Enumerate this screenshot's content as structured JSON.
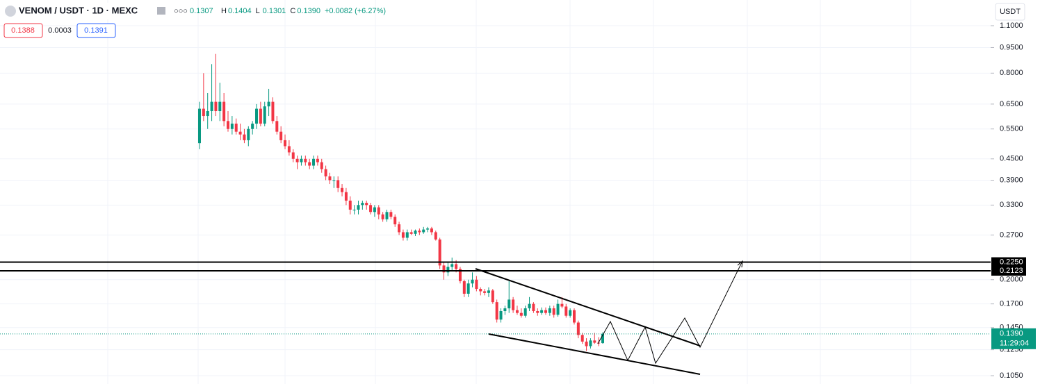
{
  "header": {
    "symbol": "VENOM / USDT · 1D · MEXC",
    "dots": "○○○",
    "open": "0.1307",
    "ohlc": [
      {
        "key": "H",
        "value": "0.1404"
      },
      {
        "key": "L",
        "value": "0.1301"
      },
      {
        "key": "C",
        "value": "0.1390"
      }
    ],
    "change": "+0.0082 (+6.27%)",
    "sell": "0.1388",
    "spread": "0.0003",
    "buy": "0.1391",
    "currency": "USDT"
  },
  "chart_data": {
    "type": "candlestick",
    "log_scale": true,
    "grid": true,
    "up_color": "#089981",
    "down_color": "#f23645",
    "ylim": [
      0.0993,
      1.307
    ],
    "yticks": [
      {
        "value": 1.1,
        "label": "1.1000"
      },
      {
        "value": 0.95,
        "label": "0.9500"
      },
      {
        "value": 0.8,
        "label": "0.8000"
      },
      {
        "value": 0.65,
        "label": "0.6500"
      },
      {
        "value": 0.55,
        "label": "0.5500"
      },
      {
        "value": 0.45,
        "label": "0.4500"
      },
      {
        "value": 0.39,
        "label": "0.3900"
      },
      {
        "value": 0.33,
        "label": "0.3300"
      },
      {
        "value": 0.27,
        "label": "0.2700"
      },
      {
        "value": 0.2,
        "label": "0.2000"
      },
      {
        "value": 0.17,
        "label": "0.1700"
      },
      {
        "value": 0.145,
        "label": "0.1450"
      },
      {
        "value": 0.125,
        "label": "0.1250"
      },
      {
        "value": 0.105,
        "label": "0.1050"
      }
    ],
    "levels": [
      {
        "value": 0.225,
        "label": "0.2250"
      },
      {
        "value": 0.2123,
        "label": "0.2123"
      }
    ],
    "last_price": {
      "value": 0.139,
      "label": "0.1390",
      "countdown": "11:29:04"
    },
    "candles": [
      [
        0.5,
        0.66,
        0.48,
        0.63
      ],
      [
        0.63,
        0.8,
        0.58,
        0.6
      ],
      [
        0.6,
        0.7,
        0.55,
        0.62
      ],
      [
        0.62,
        0.85,
        0.58,
        0.66
      ],
      [
        0.66,
        0.91,
        0.6,
        0.62
      ],
      [
        0.62,
        0.75,
        0.58,
        0.66
      ],
      [
        0.66,
        0.7,
        0.56,
        0.58
      ],
      [
        0.58,
        0.62,
        0.54,
        0.55
      ],
      [
        0.55,
        0.6,
        0.53,
        0.57
      ],
      [
        0.57,
        0.59,
        0.53,
        0.54
      ],
      [
        0.54,
        0.57,
        0.51,
        0.53
      ],
      [
        0.53,
        0.55,
        0.5,
        0.51
      ],
      [
        0.51,
        0.56,
        0.49,
        0.55
      ],
      [
        0.55,
        0.58,
        0.53,
        0.57
      ],
      [
        0.57,
        0.65,
        0.55,
        0.63
      ],
      [
        0.63,
        0.66,
        0.56,
        0.57
      ],
      [
        0.57,
        0.66,
        0.56,
        0.64
      ],
      [
        0.64,
        0.72,
        0.6,
        0.66
      ],
      [
        0.66,
        0.68,
        0.57,
        0.58
      ],
      [
        0.58,
        0.6,
        0.53,
        0.54
      ],
      [
        0.54,
        0.56,
        0.5,
        0.51
      ],
      [
        0.51,
        0.53,
        0.48,
        0.49
      ],
      [
        0.49,
        0.51,
        0.46,
        0.47
      ],
      [
        0.47,
        0.48,
        0.44,
        0.45
      ],
      [
        0.45,
        0.46,
        0.42,
        0.44
      ],
      [
        0.44,
        0.46,
        0.43,
        0.45
      ],
      [
        0.45,
        0.46,
        0.43,
        0.44
      ],
      [
        0.44,
        0.45,
        0.42,
        0.43
      ],
      [
        0.43,
        0.46,
        0.42,
        0.45
      ],
      [
        0.45,
        0.46,
        0.43,
        0.44
      ],
      [
        0.44,
        0.45,
        0.41,
        0.42
      ],
      [
        0.42,
        0.43,
        0.39,
        0.4
      ],
      [
        0.4,
        0.41,
        0.38,
        0.39
      ],
      [
        0.39,
        0.4,
        0.37,
        0.39
      ],
      [
        0.39,
        0.4,
        0.36,
        0.37
      ],
      [
        0.37,
        0.38,
        0.35,
        0.36
      ],
      [
        0.36,
        0.37,
        0.33,
        0.34
      ],
      [
        0.34,
        0.35,
        0.31,
        0.32
      ],
      [
        0.32,
        0.33,
        0.31,
        0.32
      ],
      [
        0.32,
        0.34,
        0.31,
        0.33
      ],
      [
        0.33,
        0.34,
        0.32,
        0.335
      ],
      [
        0.335,
        0.34,
        0.32,
        0.33
      ],
      [
        0.33,
        0.335,
        0.31,
        0.315
      ],
      [
        0.315,
        0.33,
        0.305,
        0.325
      ],
      [
        0.325,
        0.33,
        0.3,
        0.31
      ],
      [
        0.31,
        0.315,
        0.295,
        0.3
      ],
      [
        0.3,
        0.32,
        0.295,
        0.315
      ],
      [
        0.315,
        0.32,
        0.3,
        0.305
      ],
      [
        0.305,
        0.31,
        0.285,
        0.29
      ],
      [
        0.29,
        0.295,
        0.27,
        0.275
      ],
      [
        0.275,
        0.28,
        0.26,
        0.265
      ],
      [
        0.265,
        0.28,
        0.26,
        0.275
      ],
      [
        0.275,
        0.28,
        0.27,
        0.272
      ],
      [
        0.272,
        0.28,
        0.268,
        0.278
      ],
      [
        0.278,
        0.282,
        0.27,
        0.275
      ],
      [
        0.275,
        0.285,
        0.272,
        0.28
      ],
      [
        0.28,
        0.285,
        0.275,
        0.282
      ],
      [
        0.282,
        0.285,
        0.27,
        0.275
      ],
      [
        0.275,
        0.278,
        0.26,
        0.262
      ],
      [
        0.262,
        0.265,
        0.215,
        0.22
      ],
      [
        0.22,
        0.225,
        0.2,
        0.21
      ],
      [
        0.21,
        0.225,
        0.205,
        0.218
      ],
      [
        0.218,
        0.232,
        0.212,
        0.222
      ],
      [
        0.222,
        0.228,
        0.21,
        0.215
      ],
      [
        0.215,
        0.218,
        0.195,
        0.198
      ],
      [
        0.198,
        0.2,
        0.178,
        0.182
      ],
      [
        0.182,
        0.2,
        0.178,
        0.195
      ],
      [
        0.195,
        0.21,
        0.19,
        0.2
      ],
      [
        0.2,
        0.205,
        0.185,
        0.188
      ],
      [
        0.188,
        0.19,
        0.18,
        0.185
      ],
      [
        0.185,
        0.188,
        0.18,
        0.183
      ],
      [
        0.183,
        0.19,
        0.178,
        0.186
      ],
      [
        0.186,
        0.188,
        0.17,
        0.172
      ],
      [
        0.172,
        0.175,
        0.15,
        0.153
      ],
      [
        0.153,
        0.165,
        0.15,
        0.162
      ],
      [
        0.162,
        0.168,
        0.158,
        0.165
      ],
      [
        0.165,
        0.198,
        0.16,
        0.175
      ],
      [
        0.175,
        0.178,
        0.16,
        0.163
      ],
      [
        0.163,
        0.168,
        0.158,
        0.16
      ],
      [
        0.16,
        0.165,
        0.155,
        0.157
      ],
      [
        0.157,
        0.168,
        0.155,
        0.165
      ],
      [
        0.165,
        0.178,
        0.162,
        0.17
      ],
      [
        0.17,
        0.172,
        0.16,
        0.162
      ],
      [
        0.162,
        0.165,
        0.157,
        0.16
      ],
      [
        0.16,
        0.166,
        0.158,
        0.163
      ],
      [
        0.163,
        0.166,
        0.158,
        0.16
      ],
      [
        0.16,
        0.168,
        0.157,
        0.165
      ],
      [
        0.165,
        0.168,
        0.155,
        0.158
      ],
      [
        0.158,
        0.175,
        0.156,
        0.17
      ],
      [
        0.17,
        0.178,
        0.165,
        0.167
      ],
      [
        0.167,
        0.17,
        0.155,
        0.157
      ],
      [
        0.157,
        0.165,
        0.155,
        0.163
      ],
      [
        0.163,
        0.165,
        0.148,
        0.15
      ],
      [
        0.15,
        0.152,
        0.135,
        0.138
      ],
      [
        0.138,
        0.14,
        0.13,
        0.132
      ],
      [
        0.132,
        0.135,
        0.124,
        0.128
      ],
      [
        0.128,
        0.135,
        0.126,
        0.133
      ],
      [
        0.133,
        0.14,
        0.13,
        0.131
      ],
      [
        0.131,
        0.136,
        0.128,
        0.1307
      ],
      [
        0.1307,
        0.1404,
        0.1301,
        0.139
      ]
    ]
  }
}
